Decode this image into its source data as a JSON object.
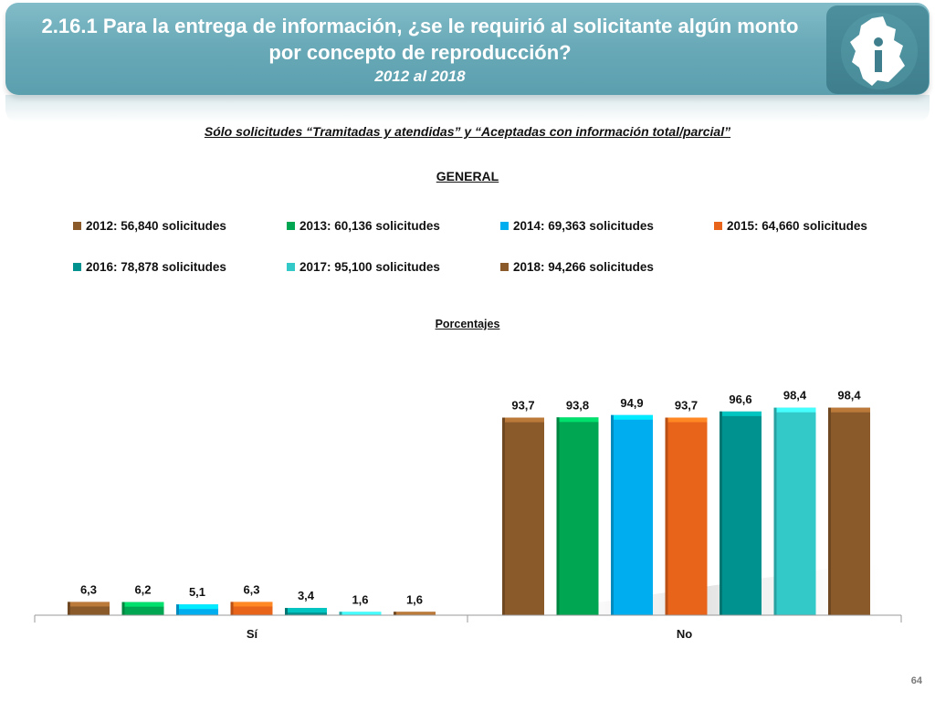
{
  "header": {
    "title_line1": "2.16.1 Para la entrega de información, ¿se le requirió al solicitante algún monto",
    "title_line2": "por concepto de reproducción?",
    "years": "2012 al 2018"
  },
  "logo": {
    "icon": "cdmx-map-info-logo-icon",
    "text": "i"
  },
  "scope_note": "Sólo solicitudes “Tramitadas y atendidas” y “Aceptadas con información total/parcial”",
  "page_number": "64",
  "colors": {
    "banner": "#6aaab8",
    "series": [
      "#8b5a2b",
      "#00a651",
      "#00aeef",
      "#e8641b",
      "#00928f",
      "#33c9c9",
      "#8b5a2b"
    ]
  },
  "chart_data": {
    "type": "bar",
    "title": "GENERAL",
    "ylabel": "Porcentajes",
    "xlabel": "",
    "categories": [
      "Sí",
      "No"
    ],
    "series": [
      {
        "name": "2012: 56,840 solicitudes",
        "values": [
          6.3,
          93.7
        ],
        "labels": [
          "6,3",
          "93,7"
        ]
      },
      {
        "name": "2013: 60,136 solicitudes",
        "values": [
          6.2,
          93.8
        ],
        "labels": [
          "6,2",
          "93,8"
        ]
      },
      {
        "name": "2014: 69,363 solicitudes",
        "values": [
          5.1,
          94.9
        ],
        "labels": [
          "5,1",
          "94,9"
        ]
      },
      {
        "name": "2015: 64,660 solicitudes",
        "values": [
          6.3,
          93.7
        ],
        "labels": [
          "6,3",
          "93,7"
        ]
      },
      {
        "name": "2016: 78,878 solicitudes",
        "values": [
          3.4,
          96.6
        ],
        "labels": [
          "3,4",
          "96,6"
        ]
      },
      {
        "name": "2017: 95,100 solicitudes",
        "values": [
          1.6,
          98.4
        ],
        "labels": [
          "1,6",
          "98,4"
        ]
      },
      {
        "name": "2018: 94,266 solicitudes",
        "values": [
          1.6,
          98.4
        ],
        "labels": [
          "1,6",
          "98,4"
        ]
      }
    ],
    "ylim": [
      0,
      100
    ],
    "grid": false,
    "legend_position": "top"
  }
}
